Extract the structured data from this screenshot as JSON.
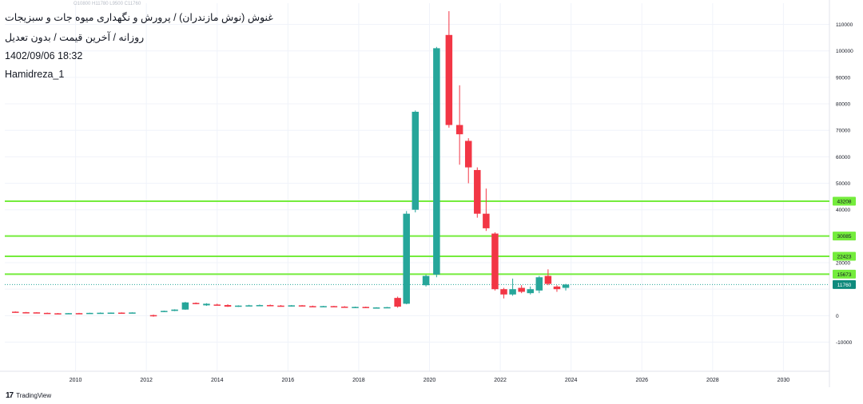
{
  "header": {
    "symbol_title": "غنوش (نوش مازندران) / پرورش و نگهداری میوه جات و سبزیجات",
    "subtitle": "روزانه / آخرین قیمت / بدون تعدیل",
    "datetime": "1402/09/06 18:32",
    "author": "Hamidreza_1",
    "faint_ohlc": "O10800 H11780 L9500 C11760"
  },
  "branding": {
    "name": "TradingView",
    "logo": "17"
  },
  "colors": {
    "up": "#26a69a",
    "up_dark": "#1c8f83",
    "down": "#f23645",
    "level": "#74ec3c",
    "last_price": "#0e8a7c"
  },
  "chart_data": {
    "type": "candlestick",
    "title": "غنوش (نوش مازندران) / پرورش و نگهداری میوه جات و سبزیجات",
    "xlabel": "",
    "ylabel": "",
    "xlim": [
      2008,
      2031.3
    ],
    "ylim": [
      -21000,
      118000
    ],
    "x_ticks": [
      2010,
      2012,
      2014,
      2016,
      2018,
      2020,
      2022,
      2024,
      2026,
      2028,
      2030
    ],
    "y_ticks": [
      -10000,
      0,
      10000,
      20000,
      30000,
      40000,
      50000,
      60000,
      70000,
      80000,
      90000,
      100000,
      110000
    ],
    "grid": true,
    "horizontal_levels": [
      43208,
      30085,
      22423,
      15673
    ],
    "last_price": 11760,
    "candles": [
      {
        "x": 2008.3,
        "o": 1500,
        "h": 1600,
        "l": 1200,
        "c": 1300
      },
      {
        "x": 2008.6,
        "o": 1300,
        "h": 1400,
        "l": 1100,
        "c": 1250
      },
      {
        "x": 2008.9,
        "o": 1250,
        "h": 1300,
        "l": 1000,
        "c": 1050
      },
      {
        "x": 2009.2,
        "o": 1050,
        "h": 1150,
        "l": 850,
        "c": 900
      },
      {
        "x": 2009.5,
        "o": 900,
        "h": 1000,
        "l": 750,
        "c": 850
      },
      {
        "x": 2009.8,
        "o": 850,
        "h": 1000,
        "l": 800,
        "c": 950
      },
      {
        "x": 2010.1,
        "o": 950,
        "h": 1050,
        "l": 850,
        "c": 900
      },
      {
        "x": 2010.4,
        "o": 900,
        "h": 1100,
        "l": 850,
        "c": 1050
      },
      {
        "x": 2010.7,
        "o": 1050,
        "h": 1200,
        "l": 1000,
        "c": 1100
      },
      {
        "x": 2011.0,
        "o": 1100,
        "h": 1200,
        "l": 1000,
        "c": 1150
      },
      {
        "x": 2011.3,
        "o": 1150,
        "h": 1250,
        "l": 1050,
        "c": 1100
      },
      {
        "x": 2011.6,
        "o": 1100,
        "h": 1250,
        "l": 1050,
        "c": 1200
      },
      {
        "x": 2012.2,
        "o": 200,
        "h": 400,
        "l": -400,
        "c": -200
      },
      {
        "x": 2012.5,
        "o": 1500,
        "h": 1900,
        "l": 1400,
        "c": 1800
      },
      {
        "x": 2012.8,
        "o": 1800,
        "h": 2400,
        "l": 1700,
        "c": 2300
      },
      {
        "x": 2013.1,
        "o": 2300,
        "h": 5200,
        "l": 2200,
        "c": 5000
      },
      {
        "x": 2013.4,
        "o": 4800,
        "h": 5000,
        "l": 4300,
        "c": 4400
      },
      {
        "x": 2013.7,
        "o": 3900,
        "h": 4700,
        "l": 3700,
        "c": 4500
      },
      {
        "x": 2014.0,
        "o": 4200,
        "h": 4500,
        "l": 3800,
        "c": 4000
      },
      {
        "x": 2014.3,
        "o": 4000,
        "h": 4300,
        "l": 3300,
        "c": 3400
      },
      {
        "x": 2014.6,
        "o": 3400,
        "h": 3900,
        "l": 3300,
        "c": 3800
      },
      {
        "x": 2014.9,
        "o": 3800,
        "h": 4100,
        "l": 3600,
        "c": 3900
      },
      {
        "x": 2015.2,
        "o": 3900,
        "h": 4200,
        "l": 3800,
        "c": 4000
      },
      {
        "x": 2015.5,
        "o": 4000,
        "h": 4200,
        "l": 3700,
        "c": 3800
      },
      {
        "x": 2015.8,
        "o": 3800,
        "h": 4000,
        "l": 3400,
        "c": 3500
      },
      {
        "x": 2016.1,
        "o": 3500,
        "h": 4000,
        "l": 3400,
        "c": 3900
      },
      {
        "x": 2016.4,
        "o": 3900,
        "h": 4000,
        "l": 3500,
        "c": 3600
      },
      {
        "x": 2016.7,
        "o": 3600,
        "h": 3800,
        "l": 3300,
        "c": 3400
      },
      {
        "x": 2017.0,
        "o": 3400,
        "h": 3700,
        "l": 3300,
        "c": 3600
      },
      {
        "x": 2017.3,
        "o": 3600,
        "h": 3700,
        "l": 3300,
        "c": 3400
      },
      {
        "x": 2017.6,
        "o": 3400,
        "h": 3600,
        "l": 3100,
        "c": 3200
      },
      {
        "x": 2017.9,
        "o": 3200,
        "h": 3400,
        "l": 2900,
        "c": 3300
      },
      {
        "x": 2018.2,
        "o": 3300,
        "h": 3400,
        "l": 2900,
        "c": 3000
      },
      {
        "x": 2018.5,
        "o": 3000,
        "h": 3200,
        "l": 2800,
        "c": 3100
      },
      {
        "x": 2018.8,
        "o": 3100,
        "h": 3300,
        "l": 2900,
        "c": 3200
      },
      {
        "x": 2019.1,
        "o": 6700,
        "h": 7200,
        "l": 3000,
        "c": 3400
      },
      {
        "x": 2019.35,
        "o": 4500,
        "h": 39500,
        "l": 4300,
        "c": 38500
      },
      {
        "x": 2019.6,
        "o": 40000,
        "h": 77500,
        "l": 39000,
        "c": 77000
      },
      {
        "x": 2019.9,
        "o": 11500,
        "h": 15500,
        "l": 11000,
        "c": 15000
      },
      {
        "x": 2020.2,
        "o": 15500,
        "h": 101500,
        "l": 14500,
        "c": 101000
      },
      {
        "x": 2020.55,
        "o": 106000,
        "h": 115000,
        "l": 71000,
        "c": 72000
      },
      {
        "x": 2020.85,
        "o": 72000,
        "h": 87000,
        "l": 57000,
        "c": 68500
      },
      {
        "x": 2021.1,
        "o": 66000,
        "h": 67000,
        "l": 50000,
        "c": 56000
      },
      {
        "x": 2021.35,
        "o": 55000,
        "h": 56000,
        "l": 37000,
        "c": 38500
      },
      {
        "x": 2021.6,
        "o": 38500,
        "h": 48000,
        "l": 32000,
        "c": 33000
      },
      {
        "x": 2021.85,
        "o": 31000,
        "h": 31500,
        "l": 9500,
        "c": 10000
      },
      {
        "x": 2022.1,
        "o": 10000,
        "h": 10500,
        "l": 6500,
        "c": 8000
      },
      {
        "x": 2022.35,
        "o": 8000,
        "h": 14000,
        "l": 7500,
        "c": 10000
      },
      {
        "x": 2022.6,
        "o": 10500,
        "h": 11500,
        "l": 8500,
        "c": 9000
      },
      {
        "x": 2022.85,
        "o": 8500,
        "h": 11000,
        "l": 8000,
        "c": 10000
      },
      {
        "x": 2023.1,
        "o": 9500,
        "h": 15000,
        "l": 8500,
        "c": 14500
      },
      {
        "x": 2023.35,
        "o": 15000,
        "h": 17500,
        "l": 11500,
        "c": 12000
      },
      {
        "x": 2023.6,
        "o": 11000,
        "h": 11500,
        "l": 9000,
        "c": 10000
      },
      {
        "x": 2023.85,
        "o": 10500,
        "h": 12000,
        "l": 9500,
        "c": 11760
      }
    ]
  }
}
